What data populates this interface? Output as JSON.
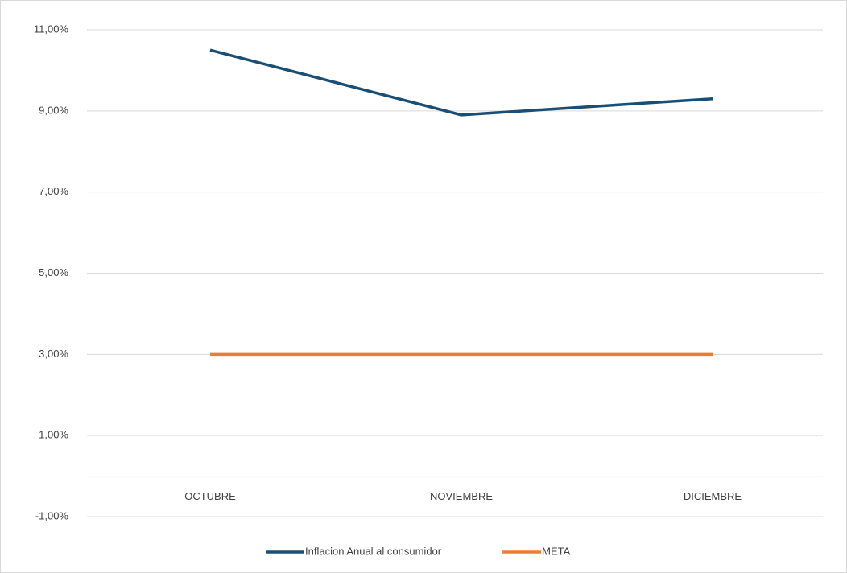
{
  "chart_data": {
    "type": "line",
    "categories": [
      "OCTUBRE",
      "NOVIEMBRE",
      "DICIEMBRE"
    ],
    "series": [
      {
        "name": "Inflacion Anual al consumidor",
        "color": "#1a4e74",
        "values": [
          10.5,
          8.9,
          9.3
        ]
      },
      {
        "name": "META",
        "color": "#ed7d31",
        "values": [
          3,
          3,
          3
        ]
      }
    ],
    "ylim": [
      -1,
      11
    ],
    "yticks": [
      {
        "value": -1,
        "label": "-1,00%"
      },
      {
        "value": 1,
        "label": "1,00%"
      },
      {
        "value": 3,
        "label": "3,00%"
      },
      {
        "value": 5,
        "label": "5,00%"
      },
      {
        "value": 7,
        "label": "7,00%"
      },
      {
        "value": 9,
        "label": "9,00%"
      },
      {
        "value": 11,
        "label": "11,00%"
      }
    ],
    "grid": true,
    "legend": "bottom"
  }
}
